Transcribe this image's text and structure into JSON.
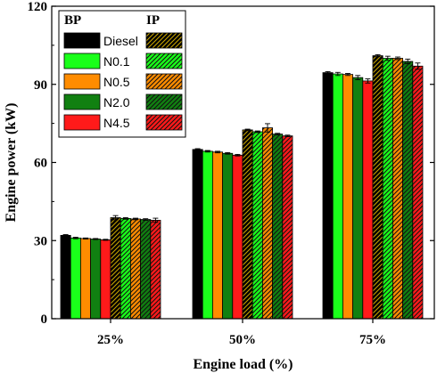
{
  "chart_data": {
    "type": "bar",
    "title": "",
    "xlabel": "Engine load (%)",
    "ylabel": "Engine power (kW)",
    "ylim": [
      0,
      120
    ],
    "yticks": [
      0,
      30,
      60,
      90,
      120
    ],
    "categories": [
      "25%",
      "50%",
      "75%"
    ],
    "legend_headers": [
      "BP",
      "IP"
    ],
    "legend_placement": "top-left",
    "grid": false,
    "series": [
      {
        "name": "Diesel",
        "group": "BP",
        "color": "#000000",
        "hatched": false,
        "values": [
          32.0,
          65.0,
          94.5
        ],
        "errors": [
          0.3,
          0.3,
          0.4
        ]
      },
      {
        "name": "N0.1",
        "group": "BP",
        "color": "#1aff1a",
        "hatched": false,
        "values": [
          31.0,
          64.3,
          94.0
        ],
        "errors": [
          0.3,
          0.3,
          0.6
        ]
      },
      {
        "name": "N0.5",
        "group": "BP",
        "color": "#ff8c00",
        "hatched": false,
        "values": [
          30.8,
          64.0,
          93.8
        ],
        "errors": [
          0.2,
          0.3,
          0.4
        ]
      },
      {
        "name": "N2.0",
        "group": "BP",
        "color": "#118011",
        "hatched": false,
        "values": [
          30.6,
          63.5,
          92.6
        ],
        "errors": [
          0.2,
          0.3,
          0.8
        ]
      },
      {
        "name": "N4.5",
        "group": "BP",
        "color": "#ff1a1a",
        "hatched": false,
        "values": [
          30.3,
          62.8,
          91.3
        ],
        "errors": [
          0.2,
          0.3,
          0.8
        ]
      },
      {
        "name": "Diesel",
        "group": "IP",
        "color": "#000000",
        "hatched": true,
        "values": [
          38.8,
          72.5,
          101.0
        ],
        "errors": [
          0.8,
          0.3,
          0.4
        ]
      },
      {
        "name": "N0.1",
        "group": "IP",
        "color": "#1aff1a",
        "hatched": true,
        "values": [
          38.5,
          71.8,
          100.0
        ],
        "errors": [
          0.3,
          0.3,
          0.8
        ]
      },
      {
        "name": "N0.5",
        "group": "IP",
        "color": "#ff8c00",
        "hatched": true,
        "values": [
          38.3,
          73.3,
          100.0
        ],
        "errors": [
          0.3,
          1.6,
          0.5
        ]
      },
      {
        "name": "N2.0",
        "group": "IP",
        "color": "#118011",
        "hatched": true,
        "values": [
          38.1,
          70.9,
          98.8
        ],
        "errors": [
          0.3,
          0.3,
          0.9
        ]
      },
      {
        "name": "N4.5",
        "group": "IP",
        "color": "#ff1a1a",
        "hatched": true,
        "values": [
          37.8,
          70.2,
          97.0
        ],
        "errors": [
          0.8,
          0.3,
          1.2
        ]
      }
    ]
  }
}
